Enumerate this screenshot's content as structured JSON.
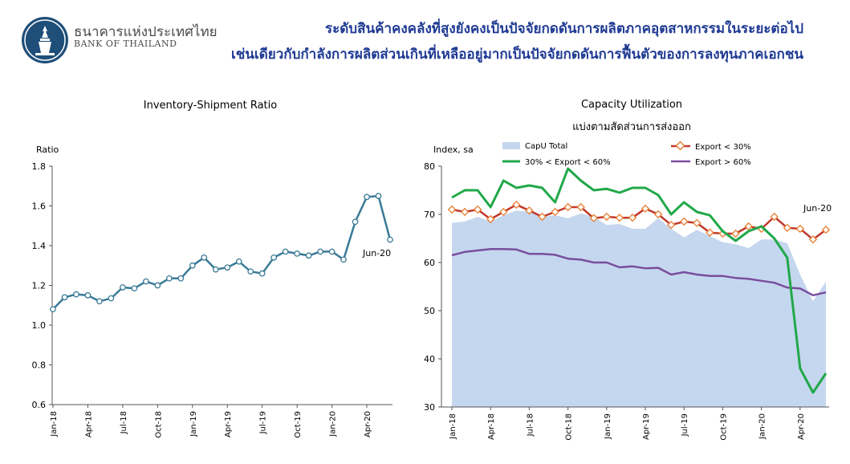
{
  "header": {
    "bank_name_th": "ธนาคารแห่งประเทศไทย",
    "bank_name_en": "BANK OF THAILAND",
    "headline_line1": "ระดับสินค้าคงคลังที่สูงยังคงเป็นปัจจัยกดดันการผลิตภาคอุตสาหกรรมในระยะต่อไป",
    "headline_line2": "เช่นเดียวกับกำลังการผลิตส่วนเกินที่เหลืออยู่มากเป็นปัจจัยกดดันการฟื้นตัวของการลงทุนภาคเอกชน"
  },
  "colors": {
    "headline": "#1f3a93",
    "logo": "#1f4e79",
    "ratio_line": "#3a7a96",
    "capu_area": "#c5d7ee",
    "export_low": "#c0392b",
    "export_low_marker": "#e8843c",
    "export_mid": "#21a849",
    "export_high": "#7a4e9e"
  },
  "chart_data": [
    {
      "type": "line",
      "title": "Inventory-Shipment Ratio",
      "ylabel": "Ratio",
      "ylim": [
        0.6,
        1.8
      ],
      "yticks": [
        "0.6",
        "0.8",
        "1.0",
        "1.2",
        "1.4",
        "1.6",
        "1.8"
      ],
      "xtick_labels": [
        "Jan-18",
        "Apr-18",
        "Jul-18",
        "Oct-18",
        "Jan-19",
        "Apr-19",
        "Jul-19",
        "Oct-19",
        "Jan-20",
        "Apr-20"
      ],
      "annotation": "Jun-20",
      "grid": false,
      "series": [
        {
          "values": [
            1.08,
            1.14,
            1.155,
            1.15,
            1.12,
            1.135,
            1.19,
            1.185,
            1.22,
            1.2,
            1.235,
            1.235,
            1.3,
            1.34,
            1.28,
            1.29,
            1.32,
            1.27,
            1.26,
            1.34,
            1.37,
            1.36,
            1.35,
            1.37,
            1.37,
            1.33,
            1.52,
            1.645,
            1.65,
            1.43
          ]
        }
      ]
    },
    {
      "type": "line",
      "title": "Capacity Utilization",
      "subtitle": "แบ่งตามสัดส่วนการส่งออก",
      "ylabel": "Index, sa",
      "ylim": [
        30,
        80
      ],
      "yticks": [
        "30",
        "40",
        "50",
        "60",
        "70",
        "80"
      ],
      "xtick_labels": [
        "Jan-18",
        "Apr-18",
        "Jul-18",
        "Oct-18",
        "Jan-19",
        "Apr-19",
        "Jul-19",
        "Oct-19",
        "Jan-20",
        "Apr-20"
      ],
      "annotation": "Jun-20",
      "legend_position": "top",
      "grid": false,
      "series": [
        {
          "name": "CapU Total",
          "style": "area",
          "values": [
            68.2,
            68.5,
            69.5,
            68.5,
            69.8,
            70.8,
            70.5,
            69.5,
            69.8,
            69.2,
            70.2,
            69.5,
            67.8,
            68.0,
            67.0,
            67.0,
            69.2,
            67.0,
            65.2,
            66.8,
            65.5,
            64.2,
            63.8,
            63.0,
            64.8,
            64.8,
            64.0,
            57.5,
            52.0,
            56.0
          ]
        },
        {
          "name": "Export < 30%",
          "style": "line-marker",
          "values": [
            71.0,
            70.5,
            71.0,
            69.0,
            70.5,
            72.0,
            70.8,
            69.5,
            70.5,
            71.5,
            71.5,
            69.2,
            69.5,
            69.3,
            69.3,
            71.2,
            70.0,
            67.8,
            68.5,
            68.2,
            66.2,
            66.0,
            66.0,
            67.5,
            67.0,
            69.5,
            67.2,
            67.0,
            64.8,
            66.8
          ]
        },
        {
          "name": "30% < Export < 60%",
          "style": "line",
          "values": [
            73.5,
            75.0,
            75.0,
            71.5,
            77.0,
            75.5,
            76.0,
            75.5,
            72.5,
            79.5,
            77.0,
            75.0,
            75.3,
            74.5,
            75.5,
            75.5,
            74.0,
            70.0,
            72.5,
            70.5,
            69.8,
            66.5,
            64.5,
            66.5,
            67.5,
            65.0,
            61.0,
            38.0,
            33.0,
            37.0
          ]
        },
        {
          "name": "Export > 60%",
          "style": "line",
          "values": [
            61.5,
            62.2,
            62.5,
            62.8,
            62.8,
            62.7,
            61.8,
            61.8,
            61.6,
            60.8,
            60.6,
            60.0,
            60.0,
            59.0,
            59.2,
            58.8,
            58.9,
            57.5,
            58.0,
            57.5,
            57.2,
            57.2,
            56.8,
            56.6,
            56.2,
            55.8,
            54.8,
            54.6,
            53.2,
            53.8
          ]
        }
      ]
    }
  ]
}
